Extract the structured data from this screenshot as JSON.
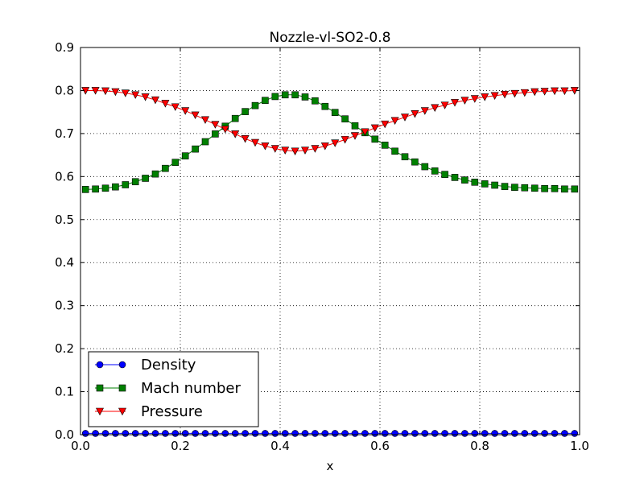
{
  "chart_data": {
    "type": "line",
    "title": "Nozzle-vl-SO2-0.8",
    "xlabel": "x",
    "ylabel": "",
    "xlim": [
      0.0,
      1.0
    ],
    "ylim": [
      0.0,
      0.9
    ],
    "xticks": [
      "0.0",
      "0.2",
      "0.4",
      "0.6",
      "0.8",
      "1.0"
    ],
    "yticks": [
      "0.0",
      "0.1",
      "0.2",
      "0.3",
      "0.4",
      "0.5",
      "0.6",
      "0.7",
      "0.8",
      "0.9"
    ],
    "grid": true,
    "legend_position": "lower-left",
    "x": [
      0.01,
      0.03,
      0.05,
      0.07,
      0.09,
      0.11,
      0.13,
      0.15,
      0.17,
      0.19,
      0.21,
      0.23,
      0.25,
      0.27,
      0.29,
      0.31,
      0.33,
      0.35,
      0.37,
      0.39,
      0.41,
      0.43,
      0.45,
      0.47,
      0.49,
      0.51,
      0.53,
      0.55,
      0.57,
      0.59,
      0.61,
      0.63,
      0.65,
      0.67,
      0.69,
      0.71,
      0.73,
      0.75,
      0.77,
      0.79,
      0.81,
      0.83,
      0.85,
      0.87,
      0.89,
      0.91,
      0.93,
      0.95,
      0.97,
      0.99
    ],
    "series": [
      {
        "name": "Density",
        "color": "#0000ff",
        "marker": "circle",
        "values": [
          0.003,
          0.003,
          0.003,
          0.003,
          0.003,
          0.003,
          0.003,
          0.003,
          0.003,
          0.003,
          0.003,
          0.003,
          0.003,
          0.003,
          0.003,
          0.003,
          0.003,
          0.003,
          0.003,
          0.003,
          0.003,
          0.003,
          0.003,
          0.003,
          0.003,
          0.003,
          0.003,
          0.003,
          0.003,
          0.003,
          0.003,
          0.003,
          0.003,
          0.003,
          0.003,
          0.003,
          0.003,
          0.003,
          0.003,
          0.003,
          0.003,
          0.003,
          0.003,
          0.003,
          0.003,
          0.003,
          0.003,
          0.003,
          0.003,
          0.003
        ]
      },
      {
        "name": "Mach number",
        "color": "#008000",
        "marker": "square",
        "values": [
          0.57,
          0.571,
          0.573,
          0.576,
          0.581,
          0.588,
          0.596,
          0.606,
          0.619,
          0.633,
          0.648,
          0.664,
          0.681,
          0.699,
          0.717,
          0.735,
          0.751,
          0.765,
          0.777,
          0.786,
          0.79,
          0.79,
          0.785,
          0.776,
          0.763,
          0.749,
          0.734,
          0.718,
          0.702,
          0.687,
          0.673,
          0.659,
          0.646,
          0.634,
          0.623,
          0.613,
          0.605,
          0.598,
          0.592,
          0.587,
          0.583,
          0.58,
          0.577,
          0.575,
          0.574,
          0.573,
          0.572,
          0.572,
          0.571,
          0.571
        ]
      },
      {
        "name": "Pressure",
        "color": "#ff0000",
        "marker": "triangle-down",
        "values": [
          0.8,
          0.8,
          0.799,
          0.797,
          0.794,
          0.79,
          0.785,
          0.778,
          0.77,
          0.762,
          0.753,
          0.743,
          0.732,
          0.721,
          0.71,
          0.699,
          0.688,
          0.679,
          0.671,
          0.665,
          0.661,
          0.659,
          0.661,
          0.665,
          0.671,
          0.678,
          0.686,
          0.695,
          0.704,
          0.713,
          0.722,
          0.73,
          0.738,
          0.746,
          0.753,
          0.76,
          0.766,
          0.772,
          0.777,
          0.781,
          0.785,
          0.788,
          0.791,
          0.793,
          0.795,
          0.797,
          0.798,
          0.799,
          0.799,
          0.8
        ]
      }
    ]
  }
}
